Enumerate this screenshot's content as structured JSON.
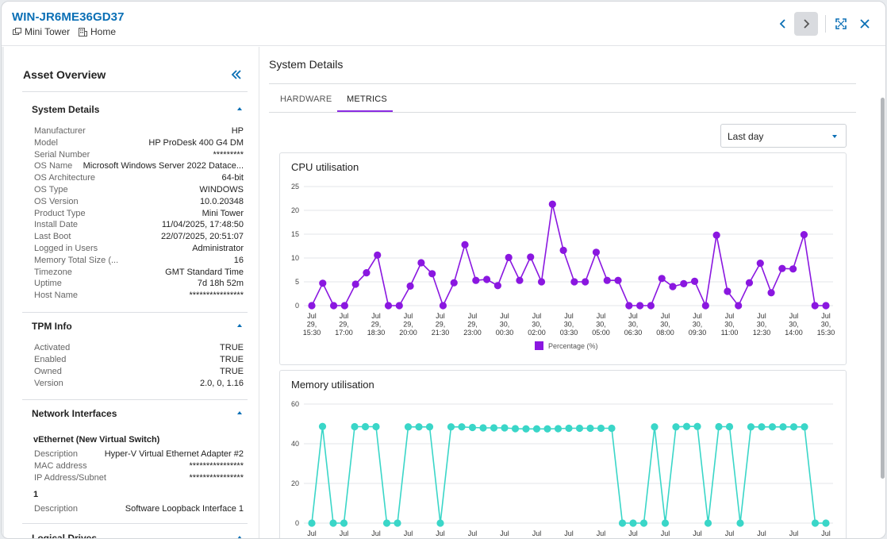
{
  "header": {
    "title": "WIN-JR6ME36GD37",
    "form_factor": "Mini Tower",
    "location": "Home"
  },
  "sidebar": {
    "title": "Asset Overview",
    "system_details": {
      "title": "System Details",
      "rows": [
        {
          "k": "Manufacturer",
          "v": "HP"
        },
        {
          "k": "Model",
          "v": "HP ProDesk 400 G4 DM"
        },
        {
          "k": "Serial Number",
          "v": "*********"
        },
        {
          "k": "OS Name",
          "v": "Microsoft Windows Server 2022 Datace..."
        },
        {
          "k": "OS Architecture",
          "v": "64-bit"
        },
        {
          "k": "OS Type",
          "v": "WINDOWS"
        },
        {
          "k": "OS Version",
          "v": "10.0.20348"
        },
        {
          "k": "Product Type",
          "v": "Mini Tower"
        },
        {
          "k": "Install Date",
          "v": "11/04/2025, 17:48:50"
        },
        {
          "k": "Last Boot",
          "v": "22/07/2025, 20:51:07"
        },
        {
          "k": "Logged in Users",
          "v": "Administrator"
        },
        {
          "k": "Memory Total Size (...",
          "v": "16"
        },
        {
          "k": "Timezone",
          "v": "GMT Standard Time"
        },
        {
          "k": "Uptime",
          "v": "7d 18h 52m"
        },
        {
          "k": "Host Name",
          "v": "****************"
        }
      ]
    },
    "tpm_info": {
      "title": "TPM Info",
      "rows": [
        {
          "k": "Activated",
          "v": "TRUE"
        },
        {
          "k": "Enabled",
          "v": "TRUE"
        },
        {
          "k": "Owned",
          "v": "TRUE"
        },
        {
          "k": "Version",
          "v": "2.0, 0, 1.16"
        }
      ]
    },
    "network_interfaces": {
      "title": "Network Interfaces",
      "adapters": [
        {
          "name": "vEthernet (New Virtual Switch)",
          "rows": [
            {
              "k": "Description",
              "v": "Hyper-V Virtual Ethernet Adapter #2"
            },
            {
              "k": "MAC address",
              "v": "****************"
            },
            {
              "k": "IP Address/Subnet",
              "v": "****************"
            }
          ]
        },
        {
          "name": "1",
          "rows": [
            {
              "k": "Description",
              "v": "Software Loopback Interface 1"
            }
          ]
        }
      ]
    },
    "logical_drives": {
      "title": "Logical Drives"
    }
  },
  "main": {
    "title": "System Details",
    "tabs": [
      {
        "label": "HARDWARE",
        "active": false
      },
      {
        "label": "METRICS",
        "active": true
      }
    ],
    "range_select": {
      "selected": "Last day"
    }
  },
  "chart_data": [
    {
      "type": "line",
      "title": "CPU utilisation",
      "color": "#8a17e0",
      "ylim": [
        0,
        25
      ],
      "yticks": [
        0,
        5,
        10,
        15,
        20,
        25
      ],
      "x_tick_labels": [
        "Jul 29, 15:30",
        "Jul 29, 17:00",
        "Jul 29, 18:30",
        "Jul 29, 20:00",
        "Jul 29, 21:30",
        "Jul 29, 23:00",
        "Jul 30, 00:30",
        "Jul 30, 02:00",
        "Jul 30, 03:30",
        "Jul 30, 05:00",
        "Jul 30, 06:30",
        "Jul 30, 08:00",
        "Jul 30, 09:30",
        "Jul 30, 11:00",
        "Jul 30, 12:30",
        "Jul 30, 14:00",
        "Jul 30, 15:30"
      ],
      "series": [
        {
          "name": "Percentage (%)",
          "values": [
            0,
            4.7,
            0,
            0,
            4.5,
            6.9,
            10.6,
            0,
            0,
            4.1,
            9.0,
            6.7,
            0,
            4.8,
            12.8,
            5.3,
            5.5,
            4.2,
            10.1,
            5.3,
            10.2,
            5.0,
            21.3,
            11.6,
            5.0,
            5.0,
            11.2,
            5.3,
            5.3,
            0,
            0,
            0,
            5.7,
            4.0,
            4.6,
            5.1,
            0,
            14.8,
            3.0,
            0,
            4.8,
            8.9,
            2.7,
            7.8,
            7.7,
            14.9,
            0,
            0
          ]
        }
      ],
      "legend": "bottom-center",
      "grid": true
    },
    {
      "type": "line",
      "title": "Memory utilisation",
      "color": "#3ad6c8",
      "ylim": [
        0,
        60
      ],
      "yticks": [
        0,
        20,
        40,
        60
      ],
      "series": [
        {
          "values": [
            0,
            48.7,
            0,
            0,
            48.6,
            48.6,
            48.6,
            0,
            0,
            48.5,
            48.5,
            48.5,
            0,
            48.5,
            48.5,
            48.2,
            48.0,
            48.0,
            48.0,
            47.6,
            47.5,
            47.5,
            47.5,
            47.6,
            47.8,
            47.8,
            47.8,
            47.8,
            47.8,
            0,
            0,
            0,
            48.5,
            0,
            48.5,
            48.7,
            48.7,
            0,
            48.6,
            48.6,
            0,
            48.5,
            48.5,
            48.5,
            48.5,
            48.5,
            48.5,
            0,
            0
          ]
        }
      ],
      "grid": true
    }
  ]
}
